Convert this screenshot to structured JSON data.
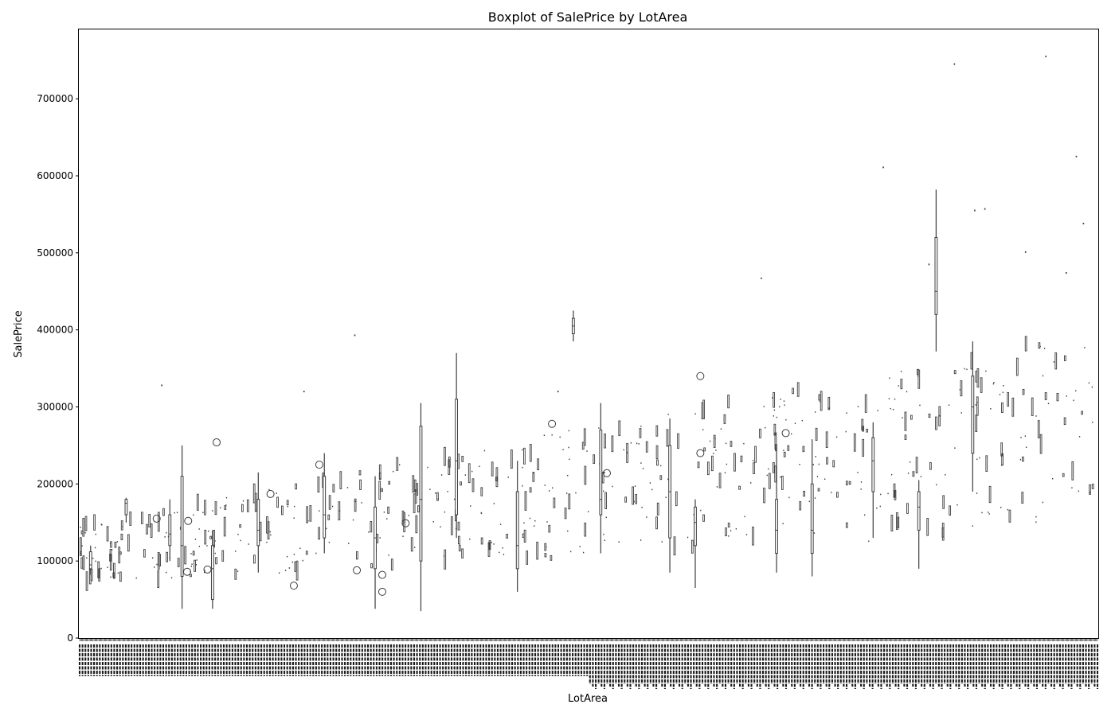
{
  "chart_data": {
    "type": "box",
    "title": "Boxplot of SalePrice by LotArea",
    "xlabel": "LotArea",
    "ylabel": "SalePrice",
    "ylim": [
      0,
      790000
    ],
    "yticks": [
      0,
      100000,
      200000,
      300000,
      400000,
      500000,
      600000,
      700000
    ],
    "grid": false,
    "legend": "none",
    "x_tick_labels_legible": false,
    "category_count_estimate": 1060,
    "colors": {
      "box": "#3d3d3d",
      "outlier_edge": "#3d3d3d",
      "axes": "#000000",
      "background": "#ffffff"
    },
    "notable_boxes": [
      {
        "position_fraction": 0.01,
        "low": 82000,
        "q1": 90000,
        "median": 95000,
        "q3": 112000,
        "high": 120000
      },
      {
        "position_fraction": 0.045,
        "low": 150000,
        "q1": 160000,
        "median": 175000,
        "q3": 180000,
        "high": 182000
      },
      {
        "position_fraction": 0.088,
        "low": 100000,
        "q1": 120000,
        "median": 135000,
        "q3": 160000,
        "high": 180000
      },
      {
        "position_fraction": 0.1,
        "low": 38000,
        "q1": 80000,
        "median": 120000,
        "q3": 210000,
        "high": 250000
      },
      {
        "position_fraction": 0.13,
        "low": 38000,
        "q1": 50000,
        "median": 90000,
        "q3": 120000,
        "high": 140000
      },
      {
        "position_fraction": 0.175,
        "low": 85000,
        "q1": 120000,
        "median": 140000,
        "q3": 180000,
        "high": 215000
      },
      {
        "position_fraction": 0.24,
        "low": 110000,
        "q1": 130000,
        "median": 160000,
        "q3": 210000,
        "high": 240000
      },
      {
        "position_fraction": 0.29,
        "low": 38000,
        "q1": 90000,
        "median": 130000,
        "q3": 170000,
        "high": 210000
      },
      {
        "position_fraction": 0.335,
        "low": 35000,
        "q1": 100000,
        "median": 180000,
        "q3": 275000,
        "high": 305000
      },
      {
        "position_fraction": 0.37,
        "low": 130000,
        "q1": 160000,
        "median": 230000,
        "q3": 310000,
        "high": 370000
      },
      {
        "position_fraction": 0.43,
        "low": 60000,
        "q1": 90000,
        "median": 120000,
        "q3": 190000,
        "high": 230000
      },
      {
        "position_fraction": 0.485,
        "low": 385000,
        "q1": 395000,
        "median": 405000,
        "q3": 415000,
        "high": 425000
      },
      {
        "position_fraction": 0.512,
        "low": 110000,
        "q1": 160000,
        "median": 180000,
        "q3": 270000,
        "high": 305000
      },
      {
        "position_fraction": 0.58,
        "low": 85000,
        "q1": 130000,
        "median": 190000,
        "q3": 250000,
        "high": 285000
      },
      {
        "position_fraction": 0.605,
        "low": 65000,
        "q1": 120000,
        "median": 150000,
        "q3": 170000,
        "high": 180000
      },
      {
        "position_fraction": 0.685,
        "low": 85000,
        "q1": 110000,
        "median": 140000,
        "q3": 180000,
        "high": 250000
      },
      {
        "position_fraction": 0.72,
        "low": 80000,
        "q1": 110000,
        "median": 140000,
        "q3": 200000,
        "high": 258000
      },
      {
        "position_fraction": 0.78,
        "low": 130000,
        "q1": 190000,
        "median": 230000,
        "q3": 260000,
        "high": 280000
      },
      {
        "position_fraction": 0.825,
        "low": 90000,
        "q1": 140000,
        "median": 170000,
        "q3": 190000,
        "high": 205000
      },
      {
        "position_fraction": 0.842,
        "low": 372000,
        "q1": 420000,
        "median": 450000,
        "q3": 520000,
        "high": 582000
      },
      {
        "position_fraction": 0.878,
        "low": 190000,
        "q1": 240000,
        "median": 300000,
        "q3": 340000,
        "high": 385000
      }
    ],
    "outliers": [
      {
        "position_fraction": 0.075,
        "value": 155000
      },
      {
        "position_fraction": 0.105,
        "value": 86000
      },
      {
        "position_fraction": 0.106,
        "value": 152000
      },
      {
        "position_fraction": 0.125,
        "value": 89000
      },
      {
        "position_fraction": 0.134,
        "value": 254000
      },
      {
        "position_fraction": 0.187,
        "value": 187000
      },
      {
        "position_fraction": 0.21,
        "value": 68000
      },
      {
        "position_fraction": 0.235,
        "value": 225000
      },
      {
        "position_fraction": 0.272,
        "value": 88000
      },
      {
        "position_fraction": 0.297,
        "value": 82000
      },
      {
        "position_fraction": 0.297,
        "value": 60000
      },
      {
        "position_fraction": 0.32,
        "value": 149000
      },
      {
        "position_fraction": 0.464,
        "value": 278000
      },
      {
        "position_fraction": 0.518,
        "value": 214000
      },
      {
        "position_fraction": 0.61,
        "value": 340000
      },
      {
        "position_fraction": 0.61,
        "value": 240000
      },
      {
        "position_fraction": 0.694,
        "value": 266000
      }
    ],
    "isolated_points": [
      {
        "position_fraction": 0.86,
        "value": 745000
      },
      {
        "position_fraction": 0.95,
        "value": 755000
      },
      {
        "position_fraction": 0.98,
        "value": 625000
      },
      {
        "position_fraction": 0.987,
        "value": 538000
      },
      {
        "position_fraction": 0.79,
        "value": 611000
      },
      {
        "position_fraction": 0.88,
        "value": 555000
      },
      {
        "position_fraction": 0.89,
        "value": 557000
      },
      {
        "position_fraction": 0.67,
        "value": 467000
      },
      {
        "position_fraction": 0.835,
        "value": 485000
      },
      {
        "position_fraction": 0.93,
        "value": 501000
      },
      {
        "position_fraction": 0.97,
        "value": 474000
      },
      {
        "position_fraction": 0.27,
        "value": 393000
      },
      {
        "position_fraction": 0.08,
        "value": 328000
      },
      {
        "position_fraction": 0.22,
        "value": 320000
      },
      {
        "position_fraction": 0.47,
        "value": 320000
      }
    ]
  }
}
